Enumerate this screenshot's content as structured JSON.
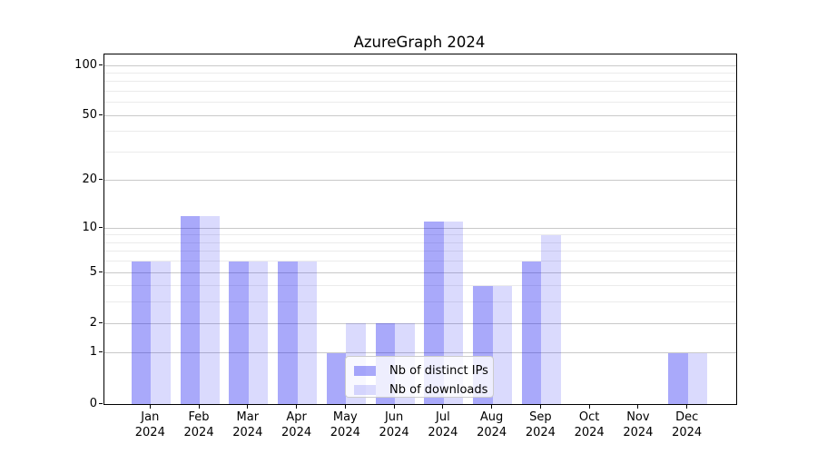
{
  "title": "AzureGraph 2024",
  "chart_data": {
    "type": "bar",
    "months": [
      "Jan",
      "Feb",
      "Mar",
      "Apr",
      "May",
      "Jun",
      "Jul",
      "Aug",
      "Sep",
      "Oct",
      "Nov",
      "Dec"
    ],
    "year_label": "2024",
    "series": [
      {
        "name": "Nb of distinct IPs",
        "color": "rgba(8,8,240,0.35)",
        "values": [
          6,
          12,
          6,
          6,
          1,
          2,
          11,
          4,
          6,
          0,
          0,
          1
        ]
      },
      {
        "name": "Nb of downloads",
        "color": "rgba(8,8,240,0.15)",
        "values": [
          6,
          12,
          6,
          6,
          2,
          2,
          11,
          4,
          9,
          0,
          0,
          1
        ]
      }
    ],
    "yscale": "log1p",
    "y_major_ticks": [
      0,
      1,
      2,
      5,
      10,
      20,
      50,
      100
    ],
    "y_tick_labels": [
      "0",
      "1",
      "2",
      "5",
      "10",
      "20",
      "50",
      "100"
    ],
    "y_minor_ticks": [
      3,
      4,
      6,
      7,
      8,
      9,
      30,
      40,
      60,
      70,
      80,
      90
    ],
    "ylim": [
      0,
      117
    ],
    "grid": true,
    "legend_position": "lower center"
  },
  "colors": {
    "major_grid": "#c9c9c9",
    "minor_grid": "#ebebeb",
    "spine": "#000000",
    "text": "#000000",
    "legend_border": "#cccccc",
    "legend_background": "rgba(255,255,255,0.8)"
  }
}
